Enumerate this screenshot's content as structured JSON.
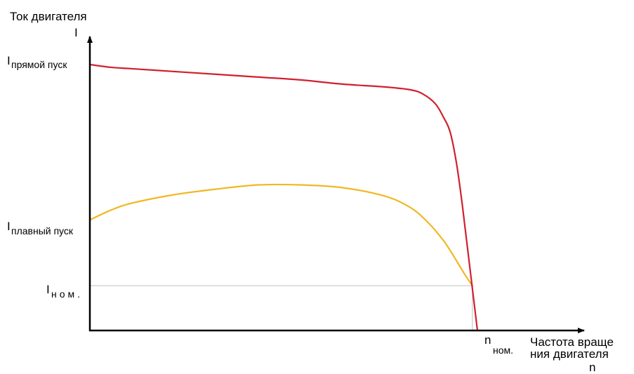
{
  "chart_data": {
    "type": "line",
    "title": "",
    "ylabel": "Ток двигателя",
    "ylabel_symbol": "I",
    "xlabel_line1": "Частота враще",
    "xlabel_line2": "ния двигателя",
    "xlabel_symbol": "n",
    "xlim": [
      0,
      1
    ],
    "ylim": [
      0,
      1
    ],
    "grid": false,
    "legend": "none",
    "ticks": {
      "y": [
        {
          "main": "I",
          "sub": "прямой пуск",
          "value": 0.95
        },
        {
          "main": "I",
          "sub": "плавный пуск",
          "value": 0.395
        },
        {
          "main": "I",
          "sub": "ном.",
          "value": 0.16
        }
      ],
      "x": [
        {
          "main": "n",
          "sub": "ном.",
          "value": 0.908
        }
      ]
    },
    "guide": {
      "x": 0.908,
      "y": 0.16,
      "color": "#bfbfbf"
    },
    "series": [
      {
        "name": "",
        "color": "#d0212d",
        "x": [
          0,
          0.05,
          0.1,
          0.2,
          0.3,
          0.4,
          0.5,
          0.6,
          0.7,
          0.76,
          0.79,
          0.82,
          0.84,
          0.855,
          0.87,
          0.884,
          0.9,
          0.92
        ],
        "y": [
          0.95,
          0.94,
          0.935,
          0.925,
          0.915,
          0.905,
          0.895,
          0.88,
          0.87,
          0.86,
          0.845,
          0.81,
          0.76,
          0.71,
          0.6,
          0.45,
          0.25,
          0.0
        ]
      },
      {
        "name": "",
        "color": "#f0b823",
        "x": [
          0,
          0.05,
          0.1,
          0.2,
          0.3,
          0.4,
          0.5,
          0.6,
          0.7,
          0.76,
          0.8,
          0.84,
          0.87,
          0.89,
          0.908
        ],
        "y": [
          0.395,
          0.43,
          0.455,
          0.485,
          0.505,
          0.52,
          0.52,
          0.51,
          0.48,
          0.44,
          0.39,
          0.32,
          0.25,
          0.2,
          0.16
        ]
      }
    ]
  }
}
